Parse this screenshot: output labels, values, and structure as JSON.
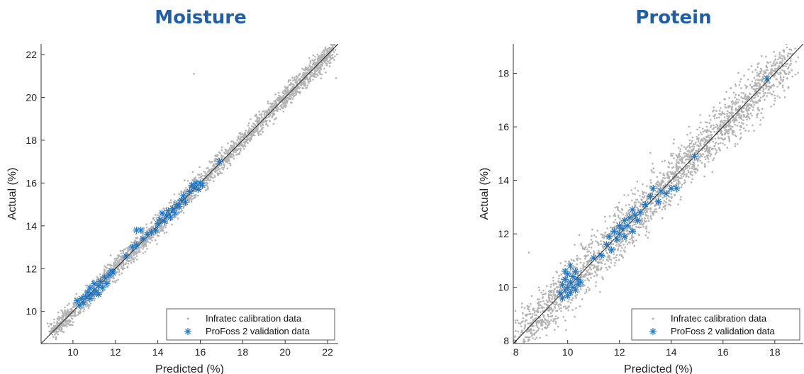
{
  "chart_data": [
    {
      "type": "scatter",
      "title": "Moisture",
      "xlabel": "Predicted (%)",
      "ylabel": "Actual (%)",
      "xlim": [
        8.5,
        22.5
      ],
      "ylim": [
        8.5,
        22.5
      ],
      "xticks": [
        10,
        12,
        14,
        16,
        18,
        20,
        22
      ],
      "yticks": [
        10,
        12,
        14,
        16,
        18,
        20,
        22
      ],
      "identity_line": true,
      "legend_position": "bottom-right",
      "series": [
        {
          "name": "Infratec calibration data",
          "marker": "dot",
          "color": "#b3b3b3",
          "range": [
            9.0,
            22.3
          ],
          "spread": 0.22,
          "count": 2600,
          "outliers": [
            [
              15.7,
              21.1
            ],
            [
              22.4,
              20.9
            ],
            [
              9.2,
              8.7
            ]
          ]
        },
        {
          "name": "ProFoss 2 validation data",
          "marker": "asterisk",
          "color": "#1f77c4",
          "points": [
            [
              10.2,
              10.5
            ],
            [
              10.3,
              10.3
            ],
            [
              10.4,
              10.6
            ],
            [
              10.5,
              10.4
            ],
            [
              10.6,
              10.7
            ],
            [
              10.7,
              10.9
            ],
            [
              10.8,
              11.1
            ],
            [
              10.8,
              10.6
            ],
            [
              10.9,
              10.8
            ],
            [
              11.0,
              11.0
            ],
            [
              11.0,
              11.3
            ],
            [
              11.1,
              10.9
            ],
            [
              11.2,
              11.2
            ],
            [
              11.2,
              10.8
            ],
            [
              11.3,
              11.4
            ],
            [
              11.4,
              11.1
            ],
            [
              11.5,
              11.6
            ],
            [
              11.6,
              11.3
            ],
            [
              11.7,
              11.7
            ],
            [
              11.8,
              11.9
            ],
            [
              11.9,
              11.8
            ],
            [
              12.5,
              12.6
            ],
            [
              12.8,
              13.0
            ],
            [
              13.0,
              13.1
            ],
            [
              13.0,
              13.8
            ],
            [
              13.2,
              13.8
            ],
            [
              13.3,
              13.4
            ],
            [
              13.5,
              13.6
            ],
            [
              13.7,
              13.7
            ],
            [
              13.9,
              13.8
            ],
            [
              14.0,
              14.1
            ],
            [
              14.1,
              14.3
            ],
            [
              14.2,
              14.6
            ],
            [
              14.3,
              14.2
            ],
            [
              14.4,
              14.5
            ],
            [
              14.5,
              14.7
            ],
            [
              14.6,
              14.4
            ],
            [
              14.7,
              14.8
            ],
            [
              14.8,
              14.6
            ],
            [
              14.9,
              15.0
            ],
            [
              15.0,
              14.9
            ],
            [
              15.1,
              15.2
            ],
            [
              15.2,
              15.4
            ],
            [
              15.3,
              15.1
            ],
            [
              15.5,
              15.6
            ],
            [
              15.6,
              15.9
            ],
            [
              15.7,
              15.8
            ],
            [
              15.8,
              16.0
            ],
            [
              15.9,
              15.7
            ],
            [
              16.0,
              16.0
            ],
            [
              16.1,
              15.9
            ],
            [
              16.9,
              17.0
            ]
          ]
        }
      ]
    },
    {
      "type": "scatter",
      "title": "Protein",
      "xlabel": "Predicted (%)",
      "ylabel": "Actual (%)",
      "xlim": [
        7.9,
        19.1
      ],
      "ylim": [
        7.9,
        19.1
      ],
      "xticks": [
        8,
        10,
        12,
        14,
        16,
        18
      ],
      "yticks": [
        8,
        10,
        12,
        14,
        16,
        18
      ],
      "identity_line": true,
      "legend_position": "bottom-right",
      "series": [
        {
          "name": "Infratec calibration data",
          "marker": "dot",
          "color": "#b3b3b3",
          "range": [
            8.2,
            18.6
          ],
          "spread": 0.42,
          "count": 2400,
          "outliers": [
            [
              8.5,
              11.3
            ],
            [
              18.9,
              18.6
            ]
          ]
        },
        {
          "name": "ProFoss 2 validation data",
          "marker": "asterisk",
          "color": "#1f77c4",
          "points": [
            [
              9.7,
              9.8
            ],
            [
              9.8,
              10.1
            ],
            [
              9.8,
              9.6
            ],
            [
              9.9,
              10.3
            ],
            [
              9.9,
              9.9
            ],
            [
              10.0,
              10.5
            ],
            [
              10.0,
              9.7
            ],
            [
              10.0,
              10.0
            ],
            [
              10.1,
              10.2
            ],
            [
              10.1,
              9.8
            ],
            [
              10.2,
              10.4
            ],
            [
              10.2,
              10.0
            ],
            [
              10.3,
              10.6
            ],
            [
              10.3,
              9.9
            ],
            [
              10.4,
              10.3
            ],
            [
              10.4,
              10.1
            ],
            [
              9.9,
              10.6
            ],
            [
              10.1,
              10.8
            ],
            [
              10.5,
              10.2
            ],
            [
              11.0,
              11.1
            ],
            [
              11.3,
              11.2
            ],
            [
              11.5,
              11.6
            ],
            [
              11.6,
              11.9
            ],
            [
              11.7,
              11.4
            ],
            [
              11.8,
              12.1
            ],
            [
              11.9,
              11.8
            ],
            [
              12.0,
              12.3
            ],
            [
              12.0,
              12.0
            ],
            [
              12.1,
              12.2
            ],
            [
              12.2,
              12.5
            ],
            [
              12.2,
              11.9
            ],
            [
              12.3,
              12.3
            ],
            [
              12.4,
              12.6
            ],
            [
              12.5,
              12.1
            ],
            [
              12.6,
              12.7
            ],
            [
              12.7,
              12.5
            ],
            [
              12.8,
              12.8
            ],
            [
              12.5,
              12.9
            ],
            [
              13.0,
              13.1
            ],
            [
              13.2,
              13.4
            ],
            [
              13.3,
              13.7
            ],
            [
              13.5,
              13.2
            ],
            [
              13.6,
              13.6
            ],
            [
              13.8,
              13.5
            ],
            [
              14.0,
              13.7
            ],
            [
              14.2,
              13.7
            ],
            [
              14.9,
              14.9
            ],
            [
              17.7,
              17.8
            ]
          ]
        }
      ]
    }
  ]
}
